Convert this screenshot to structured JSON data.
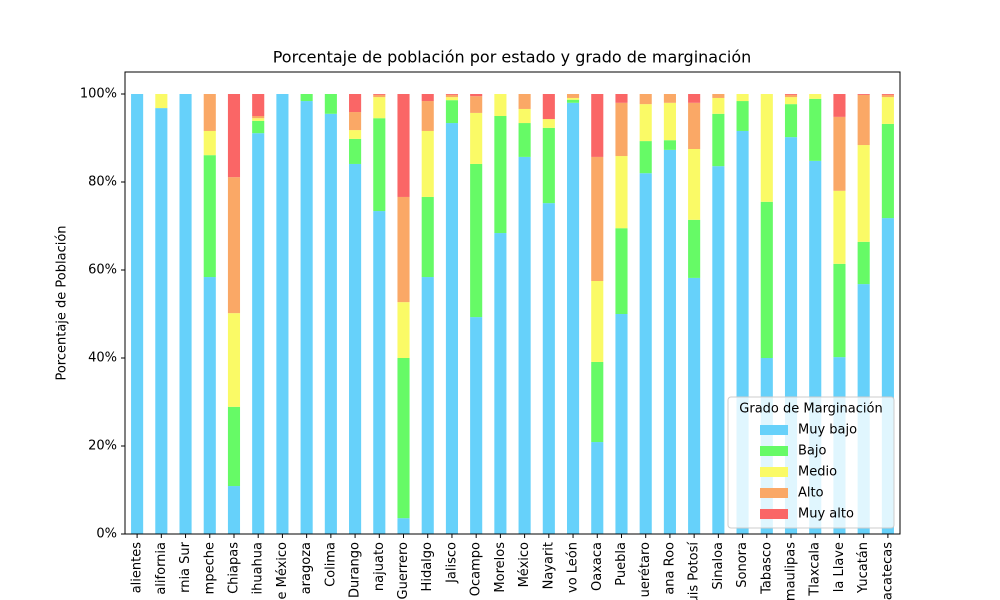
{
  "chart_data": {
    "type": "stacked_bar",
    "title": "Porcentaje de población por estado y grado de marginación",
    "ylabel": "Porcentaje de Población",
    "legend_title": "Grado de Marginación",
    "legend": "lower right",
    "categories": [
      "alientes",
      "alifornia",
      "rnia Sur",
      "mpeche",
      "Chiapas",
      "ihuahua",
      "e México",
      "aragoza",
      "Colima",
      "Durango",
      "najuato",
      "Guerrero",
      "Hidalgo",
      "Jalisco",
      "Ocampo",
      "Morelos",
      "México",
      "Nayarit",
      "vo León",
      "Oaxaca",
      "Puebla",
      "uerétaro",
      "ana Roo",
      "uis Potosí",
      "Sinaloa",
      "Sonora",
      "Tabasco",
      "maulipas",
      "Tlaxcala",
      "la Llave",
      "Yucatán",
      "acatecas"
    ],
    "series": [
      {
        "name": "Muy bajo",
        "color": "#66d1fa",
        "values": [
          100,
          96.8,
          100,
          58.4,
          10.9,
          91.1,
          100,
          98.4,
          95.5,
          84.1,
          73.4,
          3.6,
          58.4,
          93.4,
          49.3,
          68.4,
          85.7,
          75.2,
          98,
          20.9,
          50,
          82,
          87.3,
          58.2,
          83.6,
          91.6,
          40,
          90.2,
          84.8,
          40.2,
          56.8,
          71.8
        ]
      },
      {
        "name": "Bajo",
        "color": "#66fa66",
        "values": [
          0,
          0,
          0,
          27.7,
          18,
          2.8,
          0,
          1.6,
          4.5,
          5.7,
          21.1,
          36.4,
          18.2,
          5.2,
          34.8,
          26.6,
          7.7,
          17.1,
          0.7,
          18.2,
          19.5,
          7.3,
          2.2,
          13.2,
          11.9,
          6.8,
          35.5,
          7.5,
          14.1,
          21.2,
          9.6,
          21.4
        ]
      },
      {
        "name": "Medio",
        "color": "#fafa66",
        "values": [
          0,
          3.2,
          0,
          5.5,
          21.3,
          0.6,
          0,
          0,
          0,
          2,
          4.8,
          12.7,
          15,
          0.7,
          11.6,
          5,
          3.2,
          2,
          0.4,
          18.4,
          16.4,
          8.4,
          8.5,
          16.1,
          3.6,
          1.6,
          24.5,
          1.6,
          1.1,
          16.6,
          22,
          6.1
        ]
      },
      {
        "name": "Alto",
        "color": "#faa866",
        "values": [
          0,
          0,
          0,
          8.4,
          30.9,
          0.5,
          0,
          0,
          0,
          4.1,
          0.5,
          23.9,
          6.8,
          0.5,
          3.8,
          0,
          3.4,
          0,
          0.9,
          28.2,
          12.1,
          2.3,
          2,
          10.5,
          0.9,
          0,
          0,
          0.5,
          0,
          16.8,
          11.4,
          0.5
        ]
      },
      {
        "name": "Muy alto",
        "color": "#fa6666",
        "values": [
          0,
          0,
          0,
          0,
          18.9,
          5,
          0,
          0,
          0,
          4.1,
          0.2,
          23.4,
          1.6,
          0.2,
          0.5,
          0,
          0,
          5.7,
          0,
          14.3,
          2,
          0,
          0,
          2,
          0,
          0,
          0,
          0.2,
          0,
          5.2,
          0.2,
          0.2
        ]
      }
    ],
    "ylim": [
      0,
      105
    ],
    "yticks": [
      {
        "value": 0,
        "label": "0%"
      },
      {
        "value": 20,
        "label": "20%"
      },
      {
        "value": 40,
        "label": "40%"
      },
      {
        "value": 60,
        "label": "60%"
      },
      {
        "value": 80,
        "label": "80%"
      },
      {
        "value": 100,
        "label": "100%"
      }
    ]
  }
}
